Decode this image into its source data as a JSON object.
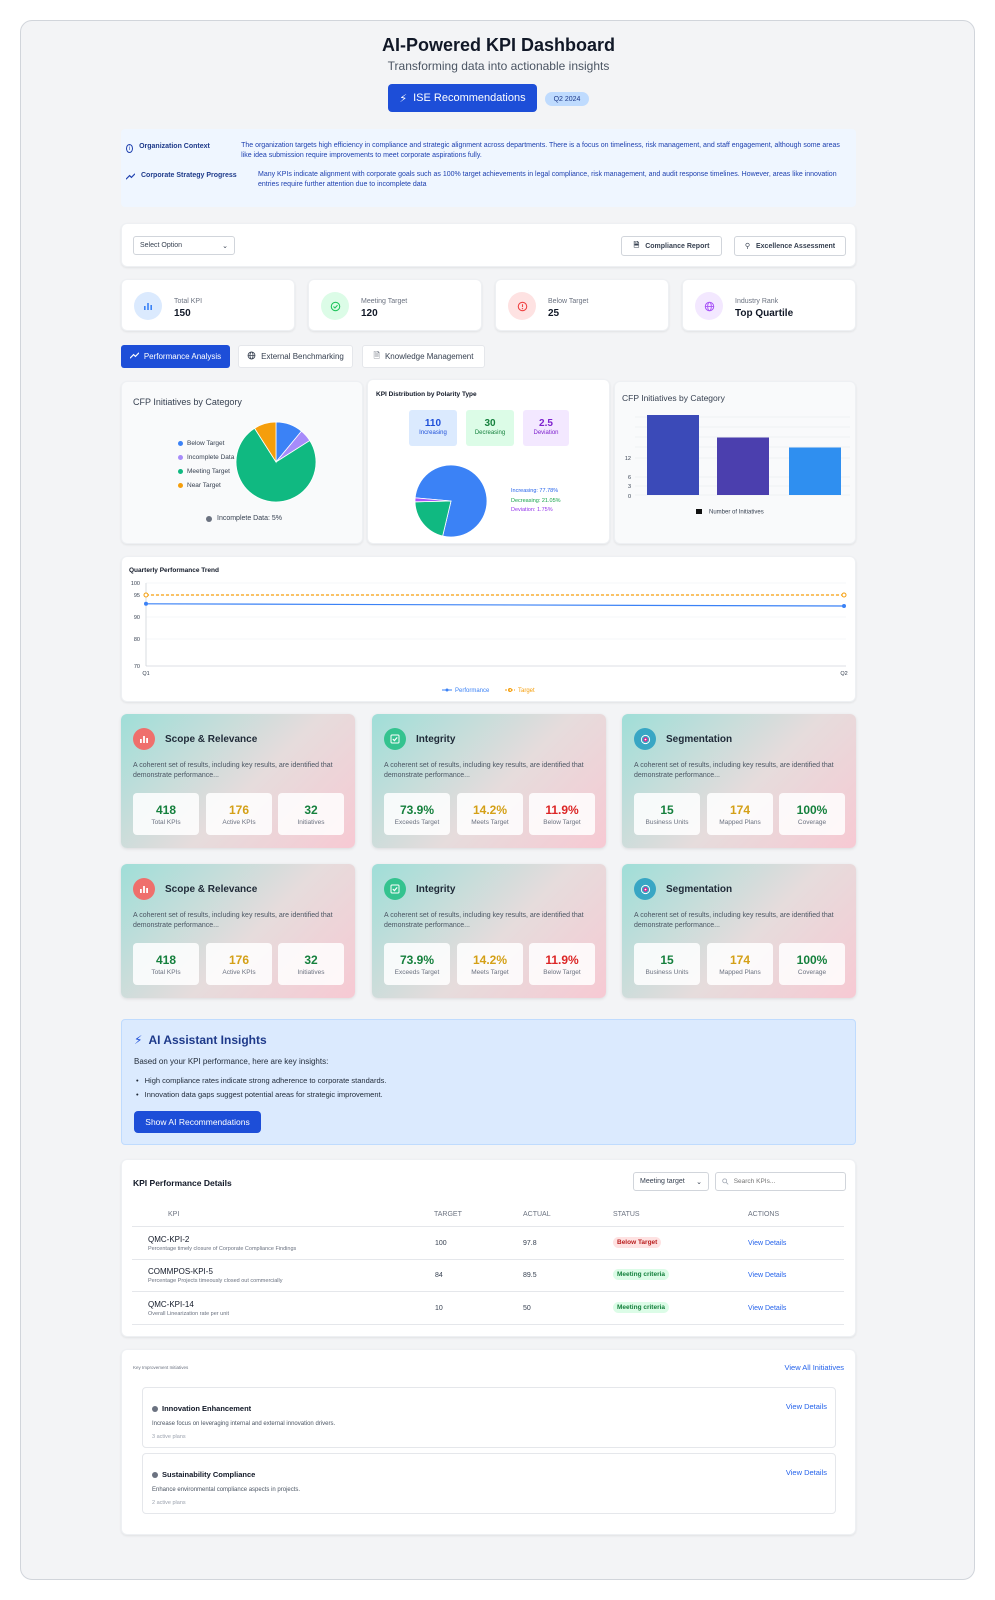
{
  "header": {
    "title": "AI-Powered KPI Dashboard",
    "subtitle": "Transforming data into actionable insights",
    "primary_button": "ISE Recommendations",
    "period_badge": "Q2 2024"
  },
  "context": {
    "org_label": "Organization Context",
    "org_text": "The organization targets high efficiency in compliance and strategic alignment across departments. There is a focus on timeliness, risk management, and staff engagement, although some areas like idea submission require improvements to meet corporate aspirations fully.",
    "strategy_label": "Corporate Strategy Progress",
    "strategy_text": "Many KPIs indicate alignment with corporate goals such as 100% target achievements in legal compliance, risk management, and audit response timelines. However, areas like innovation entries require further attention due to incomplete data"
  },
  "toolbar": {
    "select_value": "Select Option",
    "compliance_report": "Compliance Report",
    "excellence_assessment": "Excellence Assessment"
  },
  "stats": [
    {
      "label": "Total KPI",
      "value": "150",
      "icon": "bar-chart-icon",
      "color": "#3b82f6"
    },
    {
      "label": "Meeting Target",
      "value": "120",
      "icon": "check-circle-icon",
      "color": "#22c55e"
    },
    {
      "label": "Below Target",
      "value": "25",
      "icon": "alert-circle-icon",
      "color": "#ef4444"
    },
    {
      "label": "Industry Rank",
      "value": "Top Quartile",
      "icon": "globe-icon",
      "color": "#a855f7"
    }
  ],
  "tabs": [
    {
      "label": "Performance Analysis",
      "icon": "trend-icon"
    },
    {
      "label": "External Benchmarking",
      "icon": "globe-icon"
    },
    {
      "label": "Knowledge Management",
      "icon": "document-icon"
    }
  ],
  "charts": {
    "pie_cfp": {
      "title": "CFP Initiatives by Category",
      "legend": [
        {
          "label": "Below Target",
          "color": "#3b82f6"
        },
        {
          "label": "Incomplete Data",
          "color": "#a78bfa"
        },
        {
          "label": "Meeting Target",
          "color": "#10b981"
        },
        {
          "label": "Near Target",
          "color": "#f59e0b"
        }
      ],
      "note": "Incomplete Data: 5%",
      "slices": [
        {
          "label": "Below Target",
          "value": 11,
          "color": "#3b82f6"
        },
        {
          "label": "Incomplete Data",
          "value": 5,
          "color": "#a78bfa"
        },
        {
          "label": "Meeting Target",
          "value": 75,
          "color": "#10b981"
        },
        {
          "label": "Near Target",
          "value": 9,
          "color": "#f59e0b"
        }
      ]
    },
    "polarity": {
      "title": "KPI Distribution by Polarity Type",
      "boxes": [
        {
          "value": "110",
          "label": "Increasing",
          "bg": "#dbeafe",
          "fg": "#1d4ed8"
        },
        {
          "value": "30",
          "label": "Decreasing",
          "bg": "#dcfce7",
          "fg": "#15803d"
        },
        {
          "value": "2.5",
          "label": "Deviation",
          "bg": "#f3e8ff",
          "fg": "#7e22ce"
        }
      ],
      "labels": [
        {
          "text": "Increasing: 77.78%",
          "color": "#2563eb"
        },
        {
          "text": "Decreasing: 21.05%",
          "color": "#16a34a"
        },
        {
          "text": "Deviation: 1.75%",
          "color": "#9333ea"
        }
      ],
      "slices": [
        {
          "label": "Increasing",
          "value": 77.78,
          "color": "#3b82f6"
        },
        {
          "label": "Decreasing",
          "value": 21.05,
          "color": "#10b981"
        },
        {
          "label": "Deviation",
          "value": 1.75,
          "color": "#a855f7"
        }
      ]
    },
    "bar_cfp": {
      "title": "CFP Initiatives by Category",
      "legend": "Number of Initiatives",
      "ticks": [
        "12",
        "6",
        "3",
        "0"
      ],
      "ymax": 16,
      "bars": [
        {
          "value": 16,
          "color": "#3b4ab8"
        },
        {
          "value": 11.5,
          "color": "#4b3fae"
        },
        {
          "value": 9.5,
          "color": "#2f8ff0"
        }
      ]
    },
    "trend": {
      "title": "Quarterly Performance Trend",
      "y_ticks": [
        "100",
        "95",
        "90",
        "80",
        "70"
      ],
      "x_labels": [
        "Q1",
        "Q2"
      ],
      "legend_performance": "Performance",
      "legend_target": "Target",
      "ymin": 70,
      "ymax": 100,
      "performance": [
        93,
        92.5
      ],
      "target": [
        95,
        95
      ]
    }
  },
  "metric_cards": [
    {
      "title": "Scope & Relevance",
      "icon": "bar-chart-icon",
      "icon_bg": "#ef6f6c",
      "desc": "A coherent set of results, including key results, are identified that demonstrate performance...",
      "metrics": [
        {
          "value": "418",
          "label": "Total KPIs",
          "color": "#15803d"
        },
        {
          "value": "176",
          "label": "Active KPIs",
          "color": "#d4a017"
        },
        {
          "value": "32",
          "label": "Initiatives",
          "color": "#15803d"
        }
      ]
    },
    {
      "title": "Integrity",
      "icon": "check-icon",
      "icon_bg": "#34c38f",
      "desc": "A coherent set of results, including key results, are identified that demonstrate performance...",
      "metrics": [
        {
          "value": "73.9%",
          "label": "Exceeds Target",
          "color": "#15803d"
        },
        {
          "value": "14.2%",
          "label": "Meets Target",
          "color": "#d4a017"
        },
        {
          "value": "11.9%",
          "label": "Below Target",
          "color": "#dc2626"
        }
      ]
    },
    {
      "title": "Segmentation",
      "icon": "target-icon",
      "icon_bg": "#38a6c4",
      "desc": "A coherent set of results, including key results, are identified that demonstrate performance...",
      "metrics": [
        {
          "value": "15",
          "label": "Business Units",
          "color": "#15803d"
        },
        {
          "value": "174",
          "label": "Mapped Plans",
          "color": "#d4a017"
        },
        {
          "value": "100%",
          "label": "Coverage",
          "color": "#15803d"
        }
      ]
    },
    {
      "title": "Scope & Relevance",
      "icon": "bar-chart-icon",
      "icon_bg": "#ef6f6c",
      "desc": "A coherent set of results, including key results, are identified that demonstrate performance...",
      "metrics": [
        {
          "value": "418",
          "label": "Total KPIs",
          "color": "#15803d"
        },
        {
          "value": "176",
          "label": "Active KPIs",
          "color": "#d4a017"
        },
        {
          "value": "32",
          "label": "Initiatives",
          "color": "#15803d"
        }
      ]
    },
    {
      "title": "Integrity",
      "icon": "check-icon",
      "icon_bg": "#34c38f",
      "desc": "A coherent set of results, including key results, are identified that demonstrate performance...",
      "metrics": [
        {
          "value": "73.9%",
          "label": "Exceeds Target",
          "color": "#15803d"
        },
        {
          "value": "14.2%",
          "label": "Meets Target",
          "color": "#d4a017"
        },
        {
          "value": "11.9%",
          "label": "Below Target",
          "color": "#dc2626"
        }
      ]
    },
    {
      "title": "Segmentation",
      "icon": "target-icon",
      "icon_bg": "#38a6c4",
      "desc": "A coherent set of results, including key results, are identified that demonstrate performance...",
      "metrics": [
        {
          "value": "15",
          "label": "Business Units",
          "color": "#15803d"
        },
        {
          "value": "174",
          "label": "Mapped Plans",
          "color": "#d4a017"
        },
        {
          "value": "100%",
          "label": "Coverage",
          "color": "#15803d"
        }
      ]
    }
  ],
  "ai_insights": {
    "title": "AI Assistant Insights",
    "intro": "Based on your KPI performance, here are key insights:",
    "bullets": [
      "High compliance rates indicate strong adherence to corporate standards.",
      "Innovation data gaps suggest potential areas for strategic improvement."
    ],
    "button": "Show AI Recommendations"
  },
  "kpi_table": {
    "title": "KPI Performance Details",
    "filter_value": "Meeting target",
    "search_placeholder": "Search KPIs...",
    "columns": [
      "KPI",
      "TARGET",
      "ACTUAL",
      "STATUS",
      "ACTIONS"
    ],
    "rows": [
      {
        "code": "QMC-KPI-2",
        "desc": "Percentage timely closure of Corporate Compliance Findings",
        "target": "100",
        "actual": "97.8",
        "status": "Below Target",
        "status_bg": "#fee2e2",
        "status_fg": "#b91c1c",
        "action": "View Details"
      },
      {
        "code": "COMMPOS-KPI-5",
        "desc": "Percentage Projects timeously closed out commercially",
        "target": "84",
        "actual": "89.5",
        "status": "Meeting criteria",
        "status_bg": "#dcfce7",
        "status_fg": "#15803d",
        "action": "View Details"
      },
      {
        "code": "QMC-KPI-14",
        "desc": "Overall Linearization rate per unit",
        "target": "10",
        "actual": "50",
        "status": "Meeting criteria",
        "status_bg": "#dcfce7",
        "status_fg": "#15803d",
        "action": "View Details"
      }
    ]
  },
  "initiatives": {
    "title": "Key Improvement Initiatives",
    "view_all": "View All Initiatives",
    "items": [
      {
        "title": "Innovation Enhancement",
        "desc": "Increase focus on leveraging internal and external innovation drivers.",
        "plans": "3 active plans",
        "action": "View Details"
      },
      {
        "title": "Sustainability Compliance",
        "desc": "Enhance environmental compliance aspects in projects.",
        "plans": "2 active plans",
        "action": "View Details"
      }
    ]
  }
}
